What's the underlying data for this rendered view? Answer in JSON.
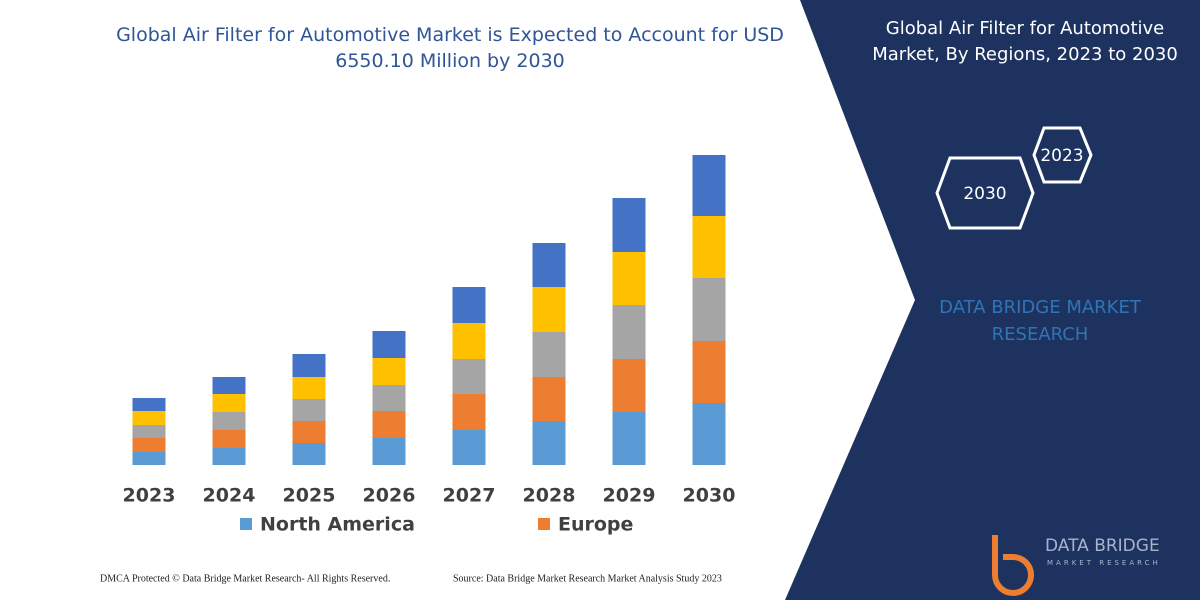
{
  "chart_data": {
    "type": "stacked-bar",
    "title": "Global Air Filter for Automotive Market is Expected to Account for USD 6550.10 Million by 2030",
    "categories": [
      "2023",
      "2024",
      "2025",
      "2026",
      "2027",
      "2028",
      "2029",
      "2030"
    ],
    "series": [
      {
        "name": "North America",
        "color": "#5b9bd5",
        "values": [
          13,
          17,
          22,
          27,
          35,
          44,
          53,
          62
        ]
      },
      {
        "name": "Europe",
        "color": "#ed7d31",
        "values": [
          14,
          18,
          22,
          27,
          36,
          44,
          53,
          62
        ]
      },
      {
        "color": "#a5a5a5",
        "values": [
          13,
          18,
          22,
          26,
          35,
          45,
          54,
          63
        ]
      },
      {
        "color": "#ffc000",
        "values": [
          14,
          18,
          22,
          27,
          36,
          45,
          53,
          62
        ]
      },
      {
        "color": "#4472c4",
        "values": [
          13,
          17,
          23,
          27,
          36,
          44,
          54,
          61
        ]
      }
    ],
    "ylim": [
      0,
      310
    ]
  },
  "panel": {
    "title": "Global Air Filter for Automotive Market, By Regions, 2023 to 2030",
    "hex_a": "2023",
    "hex_b": "2030",
    "brand": "DATA BRIDGE MARKET RESEARCH",
    "logo_top": "DATA BRIDGE",
    "logo_bottom": "MARKET RESEARCH"
  },
  "footer": {
    "left": "DMCA Protected © Data Bridge Market Research-  All Rights Reserved.",
    "right": "Source: Data Bridge Market Research  Market Analysis Study 2023"
  }
}
